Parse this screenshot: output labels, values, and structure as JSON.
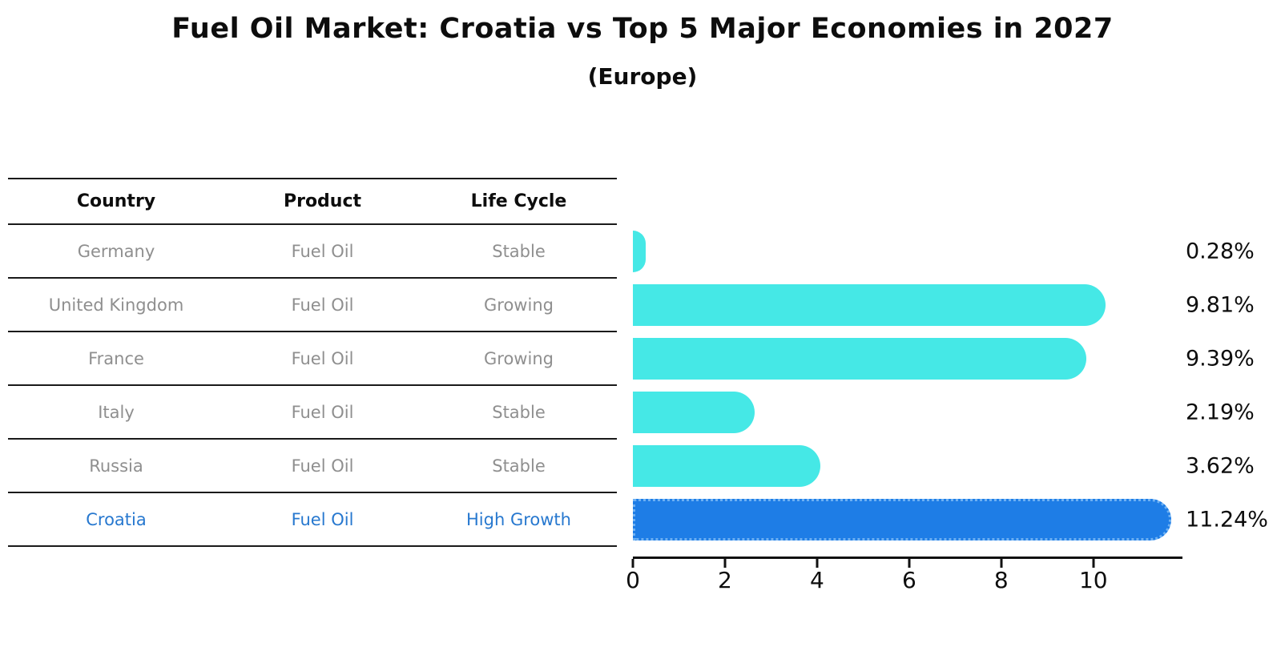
{
  "title": "Fuel Oil Market: Croatia vs Top 5 Major Economies in 2027",
  "subtitle": "(Europe)",
  "colors": {
    "bar": "#45e8e6",
    "highlight_bar": "#1e7de6",
    "highlight_bar_border": "#6eb1f3",
    "row_text": "#8f8f8f",
    "highlight_text": "#2778cf",
    "axis": "#111111"
  },
  "table": {
    "headers": [
      "Country",
      "Product",
      "Life Cycle"
    ],
    "rows": [
      {
        "country": "Germany",
        "product": "Fuel Oil",
        "life_cycle": "Stable",
        "highlight": false
      },
      {
        "country": "United Kingdom",
        "product": "Fuel Oil",
        "life_cycle": "Growing",
        "highlight": false
      },
      {
        "country": "France",
        "product": "Fuel Oil",
        "life_cycle": "Growing",
        "highlight": false
      },
      {
        "country": "Italy",
        "product": "Fuel Oil",
        "life_cycle": "Stable",
        "highlight": false
      },
      {
        "country": "Russia",
        "product": "Fuel Oil",
        "life_cycle": "Stable",
        "highlight": false
      },
      {
        "country": "Croatia",
        "product": "Fuel Oil",
        "life_cycle": "High Growth",
        "highlight": true
      }
    ]
  },
  "chart_data": {
    "type": "bar",
    "orientation": "horizontal",
    "title": "Fuel Oil Market: Croatia vs Top 5 Major Economies in 2027",
    "subtitle": "(Europe)",
    "categories": [
      "Germany",
      "United Kingdom",
      "France",
      "Italy",
      "Russia",
      "Croatia"
    ],
    "values": [
      0.28,
      9.81,
      9.39,
      2.19,
      3.62,
      11.24
    ],
    "value_labels": [
      "0.28%",
      "9.81%",
      "9.39%",
      "2.19%",
      "3.62%",
      "11.24%"
    ],
    "highlight_index": 5,
    "x_ticks": [
      0,
      2,
      4,
      6,
      8,
      10
    ],
    "xlim": [
      0,
      11.9
    ],
    "grid": false,
    "legend": false
  }
}
